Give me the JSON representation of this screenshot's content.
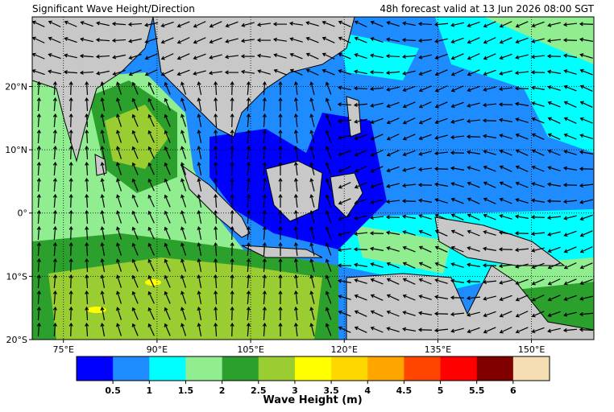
{
  "header": {
    "title": "Significant Wave Height/Direction",
    "valid": "48h forecast valid at 13 Jun 2026 08:00 SGT"
  },
  "map": {
    "lon_ticks": [
      {
        "value": 75,
        "label": "75°E"
      },
      {
        "value": 90,
        "label": "90°E"
      },
      {
        "value": 105,
        "label": "105°E"
      },
      {
        "value": 120,
        "label": "120°E"
      },
      {
        "value": 135,
        "label": "135°E"
      },
      {
        "value": 150,
        "label": "150°E"
      }
    ],
    "lat_ticks": [
      {
        "value": 20,
        "label": "20°N"
      },
      {
        "value": 10,
        "label": "10°N"
      },
      {
        "value": 0,
        "label": "0°"
      },
      {
        "value": -10,
        "label": "10°S"
      },
      {
        "value": -20,
        "label": "20°S"
      }
    ],
    "lonlim": [
      70,
      160
    ],
    "latlim": [
      -20,
      31
    ]
  },
  "colorbar": {
    "title": "Wave Height (m)",
    "colors": [
      "#0000ff",
      "#1e8cff",
      "#00ffff",
      "#90ee90",
      "#2ca02c",
      "#9acd32",
      "#ffff00",
      "#ffd700",
      "#ffa500",
      "#ff4500",
      "#ff0000",
      "#800000",
      "#f5deb3"
    ],
    "ticks": [
      0.5,
      1,
      1.5,
      2,
      2.5,
      3,
      3.5,
      4,
      4.5,
      5,
      5.5,
      6
    ]
  }
}
